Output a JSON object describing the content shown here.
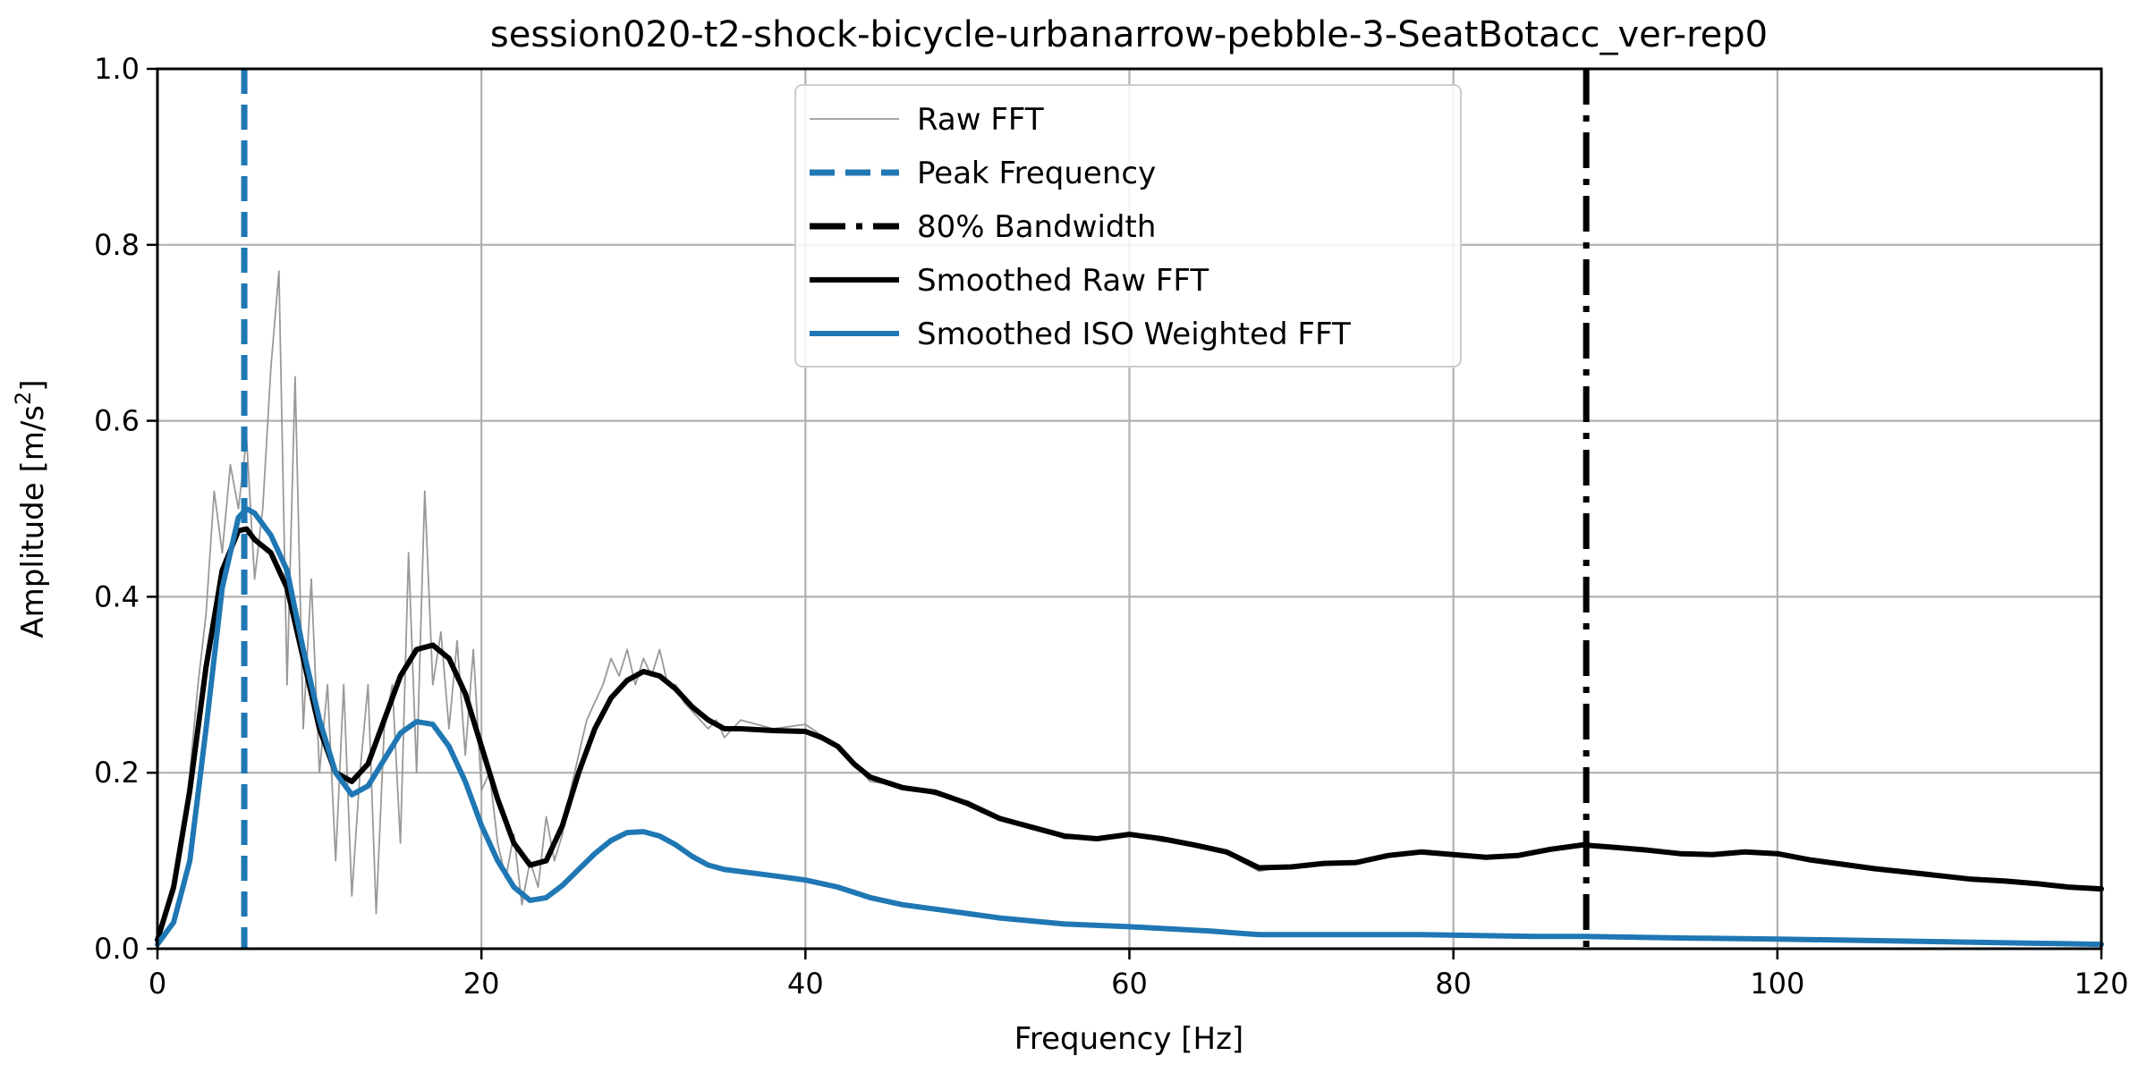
{
  "chart_data": {
    "type": "line",
    "title": "session020-t2-shock-bicycle-urbanarrow-pebble-3-SeatBotacc_ver-rep0",
    "xlabel": "Frequency [Hz]",
    "ylabel_main": "Amplitude [m/s",
    "ylabel_sup": "2",
    "ylabel_end": "]",
    "xlim": [
      0,
      120
    ],
    "ylim": [
      0,
      1.0
    ],
    "xticks": [
      0,
      20,
      40,
      60,
      80,
      100,
      120
    ],
    "yticks": [
      "0.0",
      "0.2",
      "0.4",
      "0.6",
      "0.8",
      "1.0"
    ],
    "grid": true,
    "legend_position": "top-center",
    "peak_frequency": 5.36,
    "bandwidth_80": 88.2,
    "colors": {
      "raw": "#999999",
      "blue": "#1f77b4",
      "black": "#000000",
      "grid": "#b0b0b0"
    },
    "legend": [
      "Raw FFT",
      "Peak Frequency",
      "80% Bandwidth",
      "Smoothed Raw FFT",
      "Smoothed ISO Weighted FFT"
    ],
    "series": [
      {
        "name": "Raw FFT",
        "points": [
          [
            0,
            0.01
          ],
          [
            0.5,
            0.04
          ],
          [
            1,
            0.08
          ],
          [
            1.5,
            0.12
          ],
          [
            2,
            0.2
          ],
          [
            2.5,
            0.3
          ],
          [
            3,
            0.38
          ],
          [
            3.5,
            0.52
          ],
          [
            4,
            0.45
          ],
          [
            4.5,
            0.55
          ],
          [
            5,
            0.5
          ],
          [
            5.5,
            0.58
          ],
          [
            6,
            0.42
          ],
          [
            6.5,
            0.5
          ],
          [
            7,
            0.66
          ],
          [
            7.5,
            0.77
          ],
          [
            8,
            0.3
          ],
          [
            8.5,
            0.65
          ],
          [
            9,
            0.25
          ],
          [
            9.5,
            0.42
          ],
          [
            10,
            0.2
          ],
          [
            10.5,
            0.3
          ],
          [
            11,
            0.1
          ],
          [
            11.5,
            0.3
          ],
          [
            12,
            0.06
          ],
          [
            12.5,
            0.2
          ],
          [
            13,
            0.3
          ],
          [
            13.5,
            0.04
          ],
          [
            14,
            0.25
          ],
          [
            14.5,
            0.3
          ],
          [
            15,
            0.12
          ],
          [
            15.5,
            0.45
          ],
          [
            16,
            0.2
          ],
          [
            16.5,
            0.52
          ],
          [
            17,
            0.3
          ],
          [
            17.5,
            0.36
          ],
          [
            18,
            0.25
          ],
          [
            18.5,
            0.35
          ],
          [
            19,
            0.22
          ],
          [
            19.5,
            0.34
          ],
          [
            20,
            0.18
          ],
          [
            20.5,
            0.2
          ],
          [
            21,
            0.12
          ],
          [
            21.5,
            0.08
          ],
          [
            22,
            0.13
          ],
          [
            22.5,
            0.05
          ],
          [
            23,
            0.1
          ],
          [
            23.5,
            0.07
          ],
          [
            24,
            0.15
          ],
          [
            24.5,
            0.1
          ],
          [
            25,
            0.13
          ],
          [
            25.5,
            0.18
          ],
          [
            26,
            0.22
          ],
          [
            26.5,
            0.26
          ],
          [
            27,
            0.28
          ],
          [
            27.5,
            0.3
          ],
          [
            28,
            0.33
          ],
          [
            28.5,
            0.31
          ],
          [
            29,
            0.34
          ],
          [
            29.5,
            0.3
          ],
          [
            30,
            0.33
          ],
          [
            30.5,
            0.31
          ],
          [
            31,
            0.34
          ],
          [
            31.5,
            0.3
          ],
          [
            32,
            0.3
          ],
          [
            32.5,
            0.28
          ],
          [
            33,
            0.27
          ],
          [
            33.5,
            0.26
          ],
          [
            34,
            0.25
          ],
          [
            34.5,
            0.26
          ],
          [
            35,
            0.24
          ],
          [
            36,
            0.26
          ],
          [
            38,
            0.25
          ],
          [
            40,
            0.255
          ],
          [
            42,
            0.23
          ],
          [
            44,
            0.19
          ],
          [
            46,
            0.185
          ],
          [
            48,
            0.175
          ],
          [
            50,
            0.168
          ],
          [
            52,
            0.15
          ],
          [
            54,
            0.14
          ],
          [
            56,
            0.125
          ],
          [
            58,
            0.127
          ],
          [
            60,
            0.132
          ],
          [
            62,
            0.122
          ],
          [
            64,
            0.12
          ],
          [
            66,
            0.108
          ],
          [
            68,
            0.088
          ],
          [
            70,
            0.095
          ],
          [
            72,
            0.096
          ],
          [
            74,
            0.1
          ],
          [
            76,
            0.107
          ],
          [
            78,
            0.11
          ],
          [
            80,
            0.106
          ],
          [
            82,
            0.104
          ],
          [
            84,
            0.107
          ],
          [
            86,
            0.112
          ],
          [
            88,
            0.12
          ],
          [
            90,
            0.114
          ],
          [
            92,
            0.112
          ],
          [
            94,
            0.107
          ],
          [
            96,
            0.108
          ],
          [
            98,
            0.11
          ],
          [
            100,
            0.107
          ],
          [
            102,
            0.1
          ],
          [
            104,
            0.097
          ],
          [
            106,
            0.09
          ],
          [
            108,
            0.088
          ],
          [
            110,
            0.082
          ],
          [
            112,
            0.08
          ],
          [
            114,
            0.076
          ],
          [
            116,
            0.074
          ],
          [
            118,
            0.07
          ],
          [
            120,
            0.068
          ]
        ]
      },
      {
        "name": "Smoothed Raw FFT",
        "points": [
          [
            0,
            0.01
          ],
          [
            1,
            0.07
          ],
          [
            2,
            0.18
          ],
          [
            3,
            0.32
          ],
          [
            4,
            0.43
          ],
          [
            5,
            0.475
          ],
          [
            5.5,
            0.477
          ],
          [
            6,
            0.465
          ],
          [
            7,
            0.45
          ],
          [
            8,
            0.41
          ],
          [
            9,
            0.33
          ],
          [
            10,
            0.25
          ],
          [
            11,
            0.2
          ],
          [
            12,
            0.19
          ],
          [
            13,
            0.21
          ],
          [
            14,
            0.26
          ],
          [
            15,
            0.31
          ],
          [
            16,
            0.34
          ],
          [
            17,
            0.345
          ],
          [
            18,
            0.33
          ],
          [
            19,
            0.29
          ],
          [
            20,
            0.23
          ],
          [
            21,
            0.17
          ],
          [
            22,
            0.12
          ],
          [
            23,
            0.095
          ],
          [
            24,
            0.1
          ],
          [
            25,
            0.14
          ],
          [
            26,
            0.2
          ],
          [
            27,
            0.25
          ],
          [
            28,
            0.285
          ],
          [
            29,
            0.305
          ],
          [
            30,
            0.315
          ],
          [
            31,
            0.31
          ],
          [
            32,
            0.295
          ],
          [
            33,
            0.275
          ],
          [
            34,
            0.26
          ],
          [
            35,
            0.25
          ],
          [
            36,
            0.25
          ],
          [
            38,
            0.248
          ],
          [
            40,
            0.247
          ],
          [
            41,
            0.24
          ],
          [
            42,
            0.23
          ],
          [
            43,
            0.21
          ],
          [
            44,
            0.195
          ],
          [
            46,
            0.183
          ],
          [
            48,
            0.178
          ],
          [
            50,
            0.165
          ],
          [
            52,
            0.148
          ],
          [
            54,
            0.138
          ],
          [
            56,
            0.128
          ],
          [
            58,
            0.125
          ],
          [
            60,
            0.13
          ],
          [
            62,
            0.125
          ],
          [
            64,
            0.118
          ],
          [
            66,
            0.11
          ],
          [
            68,
            0.092
          ],
          [
            70,
            0.093
          ],
          [
            72,
            0.097
          ],
          [
            74,
            0.098
          ],
          [
            76,
            0.106
          ],
          [
            78,
            0.11
          ],
          [
            80,
            0.107
          ],
          [
            82,
            0.104
          ],
          [
            84,
            0.106
          ],
          [
            86,
            0.113
          ],
          [
            88,
            0.118
          ],
          [
            90,
            0.115
          ],
          [
            92,
            0.112
          ],
          [
            94,
            0.108
          ],
          [
            96,
            0.107
          ],
          [
            98,
            0.11
          ],
          [
            100,
            0.108
          ],
          [
            102,
            0.101
          ],
          [
            104,
            0.096
          ],
          [
            106,
            0.091
          ],
          [
            108,
            0.087
          ],
          [
            110,
            0.083
          ],
          [
            112,
            0.079
          ],
          [
            114,
            0.077
          ],
          [
            116,
            0.074
          ],
          [
            118,
            0.07
          ],
          [
            120,
            0.068
          ]
        ]
      },
      {
        "name": "Smoothed ISO Weighted FFT",
        "points": [
          [
            0,
            0.005
          ],
          [
            1,
            0.03
          ],
          [
            2,
            0.1
          ],
          [
            3,
            0.25
          ],
          [
            4,
            0.41
          ],
          [
            5,
            0.49
          ],
          [
            5.5,
            0.5
          ],
          [
            6,
            0.495
          ],
          [
            7,
            0.47
          ],
          [
            8,
            0.43
          ],
          [
            9,
            0.34
          ],
          [
            10,
            0.26
          ],
          [
            11,
            0.2
          ],
          [
            12,
            0.175
          ],
          [
            13,
            0.185
          ],
          [
            14,
            0.215
          ],
          [
            15,
            0.245
          ],
          [
            16,
            0.258
          ],
          [
            17,
            0.255
          ],
          [
            18,
            0.23
          ],
          [
            19,
            0.19
          ],
          [
            20,
            0.14
          ],
          [
            21,
            0.1
          ],
          [
            22,
            0.07
          ],
          [
            23,
            0.055
          ],
          [
            24,
            0.058
          ],
          [
            25,
            0.072
          ],
          [
            26,
            0.09
          ],
          [
            27,
            0.108
          ],
          [
            28,
            0.123
          ],
          [
            29,
            0.132
          ],
          [
            30,
            0.133
          ],
          [
            31,
            0.128
          ],
          [
            32,
            0.118
          ],
          [
            33,
            0.105
          ],
          [
            34,
            0.095
          ],
          [
            35,
            0.09
          ],
          [
            38,
            0.083
          ],
          [
            40,
            0.078
          ],
          [
            42,
            0.07
          ],
          [
            44,
            0.058
          ],
          [
            46,
            0.05
          ],
          [
            48,
            0.045
          ],
          [
            50,
            0.04
          ],
          [
            52,
            0.035
          ],
          [
            56,
            0.028
          ],
          [
            60,
            0.025
          ],
          [
            65,
            0.02
          ],
          [
            68,
            0.016
          ],
          [
            75,
            0.016
          ],
          [
            78,
            0.016
          ],
          [
            85,
            0.014
          ],
          [
            88,
            0.014
          ],
          [
            95,
            0.012
          ],
          [
            100,
            0.011
          ],
          [
            110,
            0.008
          ],
          [
            120,
            0.005
          ]
        ]
      }
    ]
  }
}
